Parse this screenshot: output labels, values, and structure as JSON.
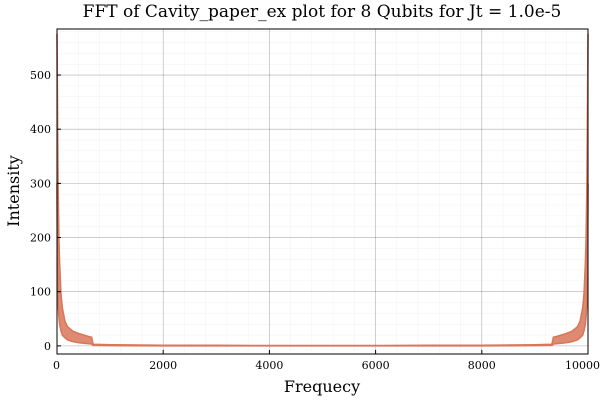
{
  "chart_data": {
    "type": "line",
    "title": "FFT of Cavity_paper_ex plot for 8 Qubits for Jt = 1.0e-5",
    "xlabel": "Frequecy",
    "ylabel": "Intensity",
    "xlim": [
      0,
      10000
    ],
    "ylim": [
      -15,
      585
    ],
    "x_ticks": [
      0,
      2000,
      4000,
      6000,
      8000,
      10000
    ],
    "x_tick_labels": [
      "0",
      "2000",
      "4000",
      "6000",
      "8000",
      "10000"
    ],
    "y_ticks": [
      0,
      100,
      200,
      300,
      400,
      500
    ],
    "y_tick_labels": [
      "0",
      "100",
      "200",
      "300",
      "400",
      "500"
    ],
    "grid": true,
    "legend": "none",
    "series": [
      {
        "color": "#D9775A",
        "x": [
          0,
          10,
          20,
          35,
          50,
          75,
          100,
          150,
          200,
          300,
          400,
          500,
          600,
          650,
          680,
          1000,
          2000,
          3000,
          4000,
          5000,
          6000,
          7000,
          8000,
          9000,
          9320,
          9350,
          9400,
          9500,
          9600,
          9700,
          9800,
          9850,
          9900,
          9925,
          9950,
          9965,
          9980,
          9990,
          10000
        ],
        "upper": [
          575,
          430,
          300,
          200,
          150,
          95,
          70,
          45,
          35,
          27,
          23,
          20,
          17,
          16,
          3,
          2,
          1,
          1,
          0.5,
          0.5,
          0.5,
          1,
          1,
          2,
          3,
          16,
          17,
          20,
          23,
          27,
          35,
          45,
          70,
          95,
          150,
          200,
          300,
          430,
          575
        ],
        "lower": [
          300,
          150,
          80,
          55,
          40,
          28,
          20,
          15,
          11,
          8,
          6,
          5,
          4,
          3.5,
          1,
          0.5,
          0,
          0,
          0,
          0,
          0,
          0,
          0,
          0.5,
          1,
          3.5,
          4,
          5,
          6,
          8,
          11,
          15,
          20,
          28,
          40,
          55,
          80,
          150,
          300
        ]
      }
    ]
  }
}
